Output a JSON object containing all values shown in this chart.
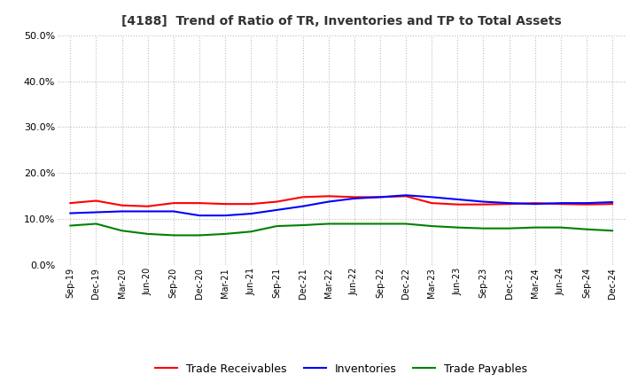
{
  "title": "[4188]  Trend of Ratio of TR, Inventories and TP to Total Assets",
  "x_labels": [
    "Sep-19",
    "Dec-19",
    "Mar-20",
    "Jun-20",
    "Sep-20",
    "Dec-20",
    "Mar-21",
    "Jun-21",
    "Sep-21",
    "Dec-21",
    "Mar-22",
    "Jun-22",
    "Sep-22",
    "Dec-22",
    "Mar-23",
    "Jun-23",
    "Sep-23",
    "Dec-23",
    "Mar-24",
    "Jun-24",
    "Sep-24",
    "Dec-24"
  ],
  "trade_receivables": [
    0.135,
    0.14,
    0.13,
    0.128,
    0.135,
    0.135,
    0.133,
    0.133,
    0.138,
    0.148,
    0.15,
    0.148,
    0.148,
    0.15,
    0.135,
    0.132,
    0.132,
    0.133,
    0.135,
    0.133,
    0.132,
    0.133
  ],
  "inventories": [
    0.113,
    0.115,
    0.117,
    0.117,
    0.117,
    0.108,
    0.108,
    0.112,
    0.12,
    0.128,
    0.138,
    0.145,
    0.148,
    0.152,
    0.148,
    0.143,
    0.138,
    0.135,
    0.133,
    0.135,
    0.135,
    0.137
  ],
  "trade_payables": [
    0.086,
    0.09,
    0.075,
    0.068,
    0.065,
    0.065,
    0.068,
    0.073,
    0.085,
    0.087,
    0.09,
    0.09,
    0.09,
    0.09,
    0.085,
    0.082,
    0.08,
    0.08,
    0.082,
    0.082,
    0.078,
    0.075
  ],
  "tr_color": "#FF0000",
  "inv_color": "#0000FF",
  "tp_color": "#008000",
  "ylim": [
    0.0,
    0.5
  ],
  "yticks": [
    0.0,
    0.1,
    0.2,
    0.3,
    0.4,
    0.5
  ],
  "legend_labels": [
    "Trade Receivables",
    "Inventories",
    "Trade Payables"
  ],
  "background_color": "#FFFFFF",
  "grid_color": "#BBBBBB",
  "title_color": "#333333"
}
